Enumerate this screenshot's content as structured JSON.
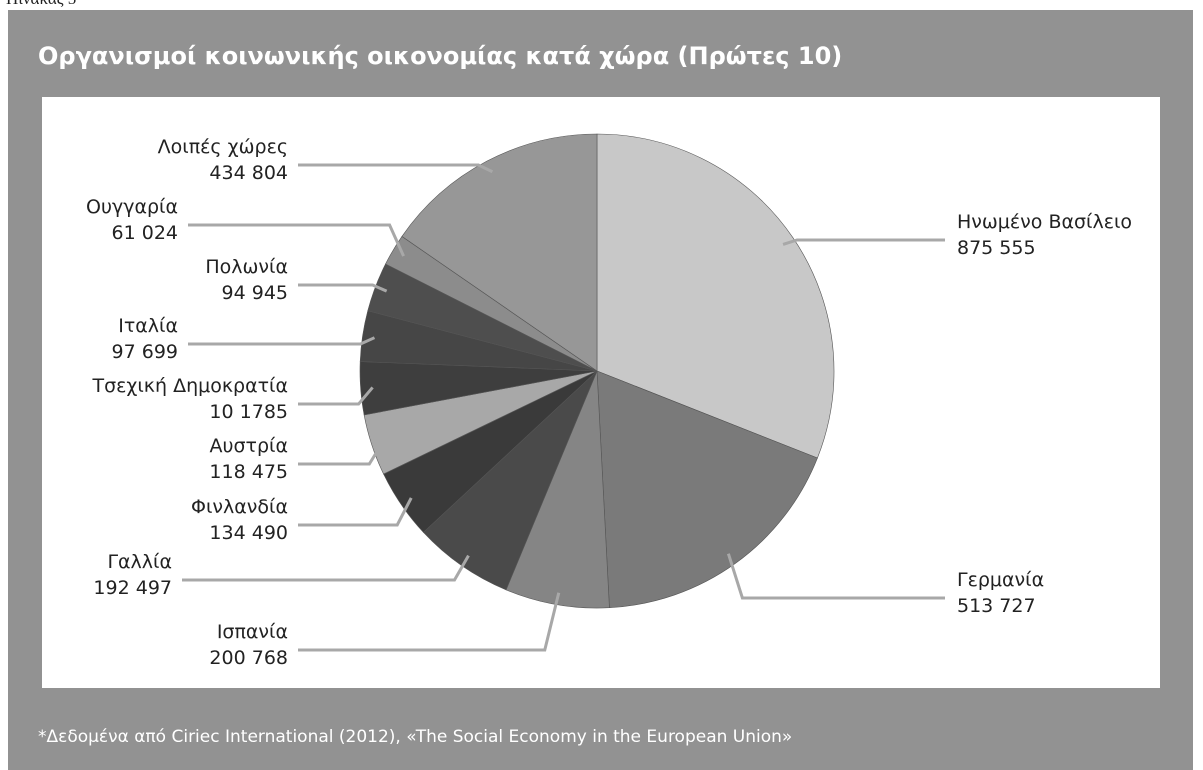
{
  "caption": "Πίνακας 5",
  "chart_data": {
    "type": "pie",
    "title": "Οργανισμοί κοινωνικής οικονομίας κατά χώρα (Πρώτες 10)",
    "note": "*Δεδομένα από Ciriec International (2012), «The Social Economy in the European Union»",
    "categories": [
      "Ηνωμένο Βασίλειο",
      "Γερμανία",
      "Ισπανία",
      "Γαλλία",
      "Φινλανδία",
      "Αυστρία",
      "Τσεχική Δημοκρατία",
      "Ιταλία",
      "Πολωνία",
      "Ουγγαρία",
      "Λοιπές χώρες"
    ],
    "values": [
      875555,
      513727,
      200768,
      192497,
      134490,
      118475,
      101785,
      97699,
      94945,
      61024,
      434804
    ],
    "value_labels": [
      "875 555",
      "513 727",
      "200 768",
      "192 497",
      "134 490",
      "118 475",
      "10 1785",
      "97 699",
      "94 945",
      "61 024",
      "434 804"
    ],
    "colors": [
      "#c8c8c8",
      "#7a7a7a",
      "#858585",
      "#4a4a4a",
      "#3a3a3a",
      "#a8a8a8",
      "#3e3e3e",
      "#464646",
      "#4e4e4e",
      "#8c8c8c",
      "#979797"
    ]
  }
}
